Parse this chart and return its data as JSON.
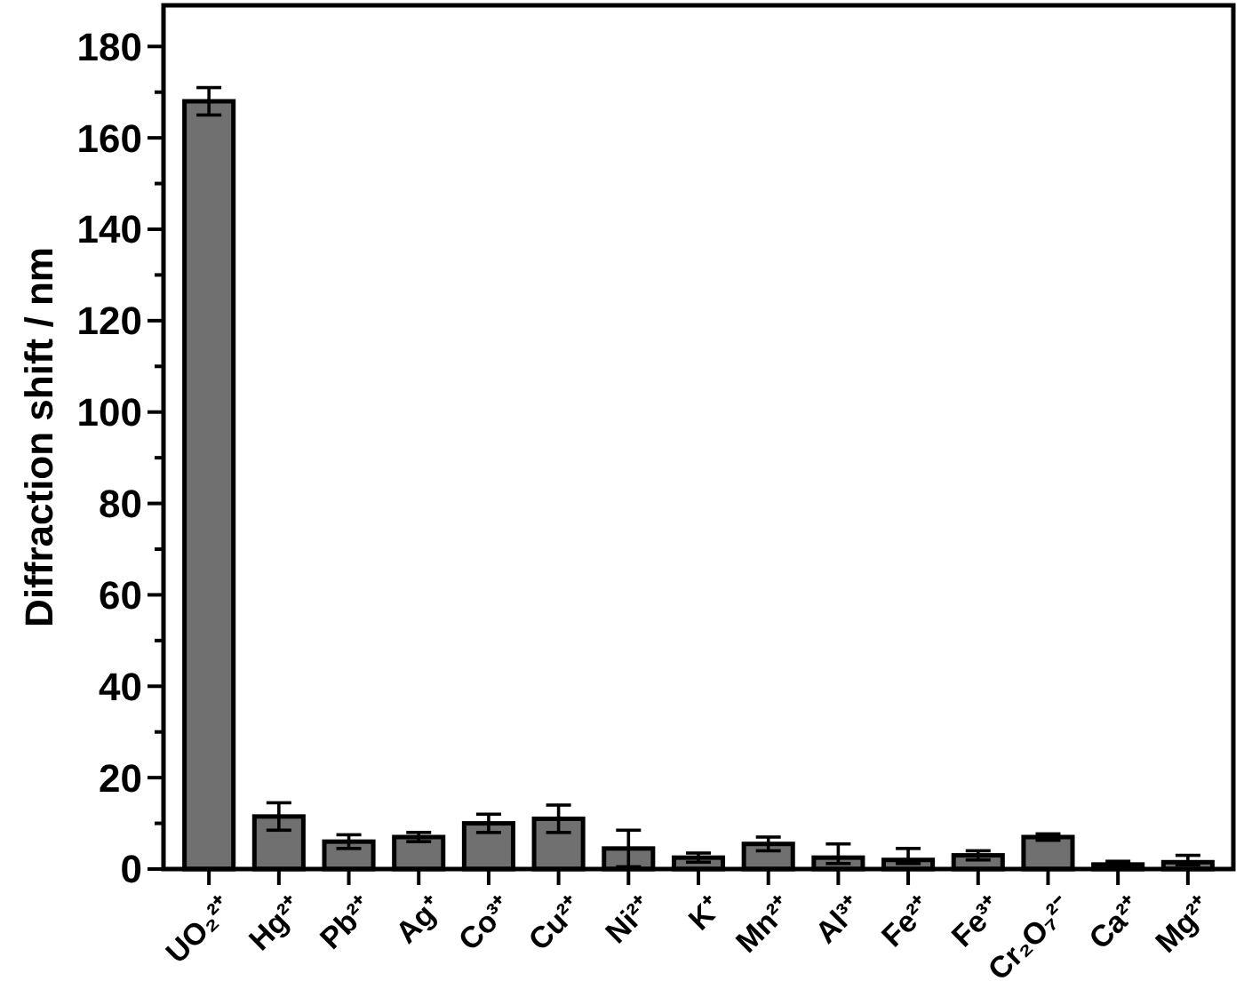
{
  "chart_data": {
    "type": "bar",
    "ylabel": "Diffraction shift / nm",
    "categories": [
      "UO₂²⁺",
      "Hg²⁺",
      "Pb²⁺",
      "Ag⁺",
      "Co³⁺",
      "Cu²⁺",
      "Ni²⁺",
      "K⁺",
      "Mn²⁺",
      "Al³⁺",
      "Fe²⁺",
      "Fe³⁺",
      "Cr₂O₇²⁻",
      "Ca²⁺",
      "Mg²⁺"
    ],
    "values": [
      168,
      11.5,
      6,
      7,
      10,
      11,
      4.5,
      2.5,
      5.5,
      2.5,
      2,
      3,
      7,
      1,
      1.5
    ],
    "errors": [
      3,
      3,
      1.5,
      1,
      2,
      3,
      4,
      1,
      1.5,
      [
        1.2,
        5.5
      ],
      [
        1.2,
        4.5
      ],
      1,
      0.7,
      0.7,
      [
        0.9,
        3
      ]
    ],
    "color": "#707070",
    "ylim": [
      0,
      189
    ],
    "yticks": [
      0,
      {
        "value": 10,
        "label": null
      },
      20,
      {
        "value": 30,
        "label": null
      },
      40,
      {
        "value": 50,
        "label": null
      },
      60,
      {
        "value": 70,
        "label": null
      },
      80,
      {
        "value": 90,
        "label": null
      },
      100,
      {
        "value": 110,
        "label": null
      },
      120,
      {
        "value": 130,
        "label": null
      },
      140,
      {
        "value": 150,
        "label": null
      },
      160,
      {
        "value": 170,
        "label": null
      },
      180
    ],
    "grid": false
  }
}
